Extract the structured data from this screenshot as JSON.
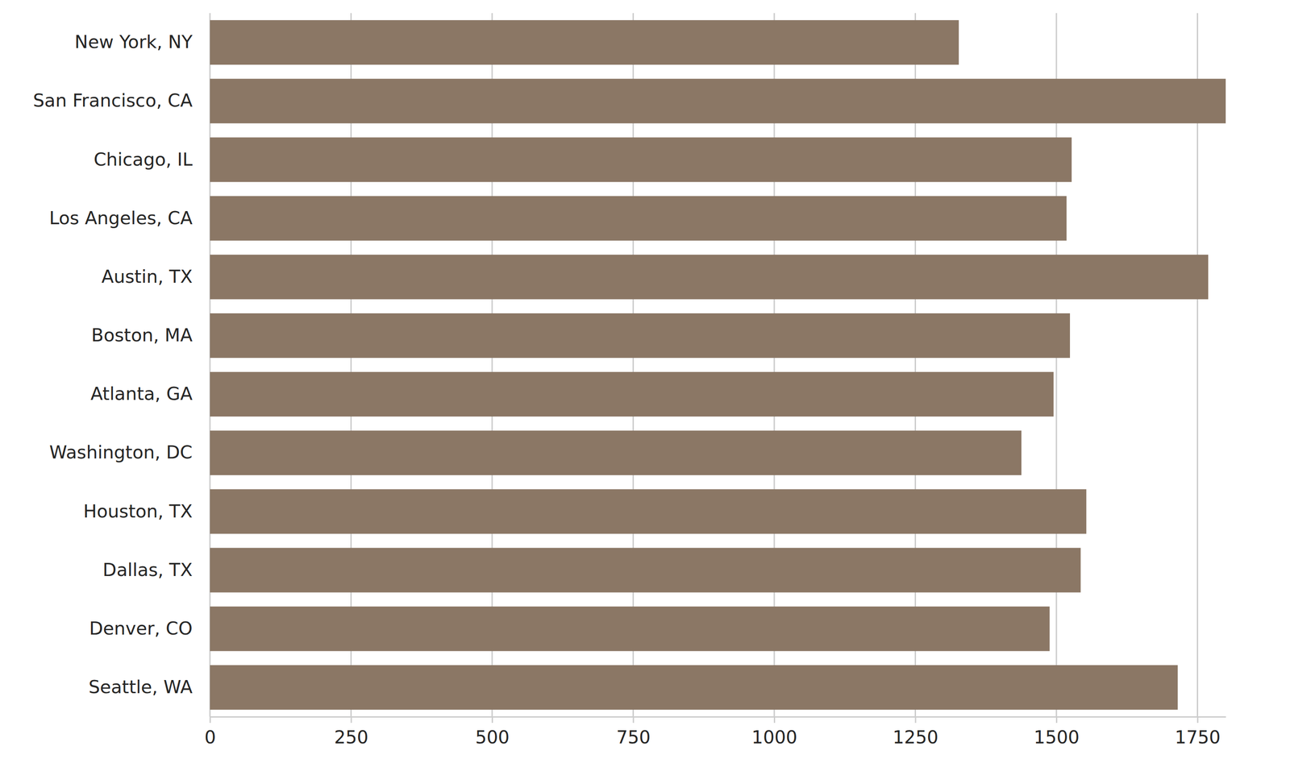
{
  "chart_data": {
    "type": "bar",
    "orientation": "horizontal",
    "categories": [
      "New York, NY",
      "San Francisco, CA",
      "Chicago, IL",
      "Los Angeles, CA",
      "Austin, TX",
      "Boston, MA",
      "Atlanta, GA",
      "Washington, DC",
      "Houston, TX",
      "Dallas, TX",
      "Denver, CO",
      "Seattle, WA"
    ],
    "values": [
      1327,
      1800,
      1527,
      1518,
      1769,
      1524,
      1495,
      1438,
      1553,
      1543,
      1488,
      1715
    ],
    "color": "#8b7765",
    "xlim": [
      0,
      1800
    ],
    "xticks": [
      0,
      250,
      500,
      750,
      1000,
      1250,
      1500,
      1750
    ],
    "grid": true
  }
}
